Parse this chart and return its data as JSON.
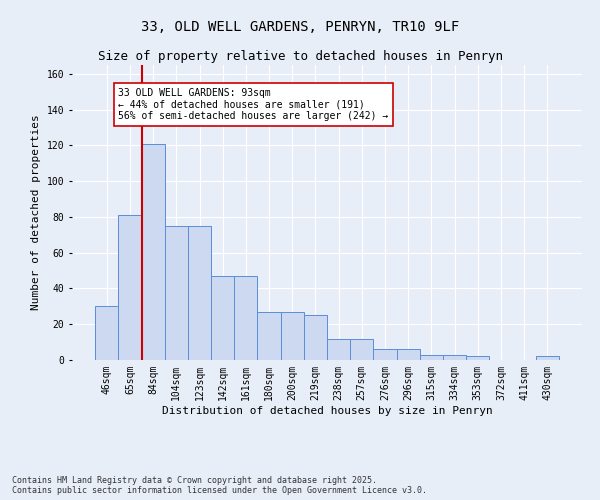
{
  "title_line1": "33, OLD WELL GARDENS, PENRYN, TR10 9LF",
  "title_line2": "Size of property relative to detached houses in Penryn",
  "xlabel": "Distribution of detached houses by size in Penryn",
  "ylabel": "Number of detached properties",
  "categories": [
    "46sqm",
    "65sqm",
    "84sqm",
    "104sqm",
    "123sqm",
    "142sqm",
    "161sqm",
    "180sqm",
    "200sqm",
    "219sqm",
    "238sqm",
    "257sqm",
    "276sqm",
    "296sqm",
    "315sqm",
    "334sqm",
    "353sqm",
    "372sqm",
    "411sqm",
    "430sqm"
  ],
  "values": [
    30,
    81,
    121,
    75,
    75,
    47,
    47,
    27,
    27,
    25,
    12,
    12,
    6,
    6,
    3,
    3,
    2,
    0,
    0,
    2
  ],
  "bar_color": "#ccd9f0",
  "bar_edge_color": "#5b8dd9",
  "vline_color": "#cc0000",
  "vline_pos": 2.5,
  "annotation_text": "33 OLD WELL GARDENS: 93sqm\n← 44% of detached houses are smaller (191)\n56% of semi-detached houses are larger (242) →",
  "annotation_box_color": "#ffffff",
  "annotation_box_edge": "#cc0000",
  "background_color": "#e8eef8",
  "grid_color": "#ffffff",
  "footer_line1": "Contains HM Land Registry data © Crown copyright and database right 2025.",
  "footer_line2": "Contains public sector information licensed under the Open Government Licence v3.0.",
  "ylim": [
    0,
    165
  ],
  "title_fontsize": 10,
  "subtitle_fontsize": 9,
  "axis_label_fontsize": 8,
  "tick_fontsize": 7,
  "annotation_fontsize": 7,
  "footer_fontsize": 6
}
